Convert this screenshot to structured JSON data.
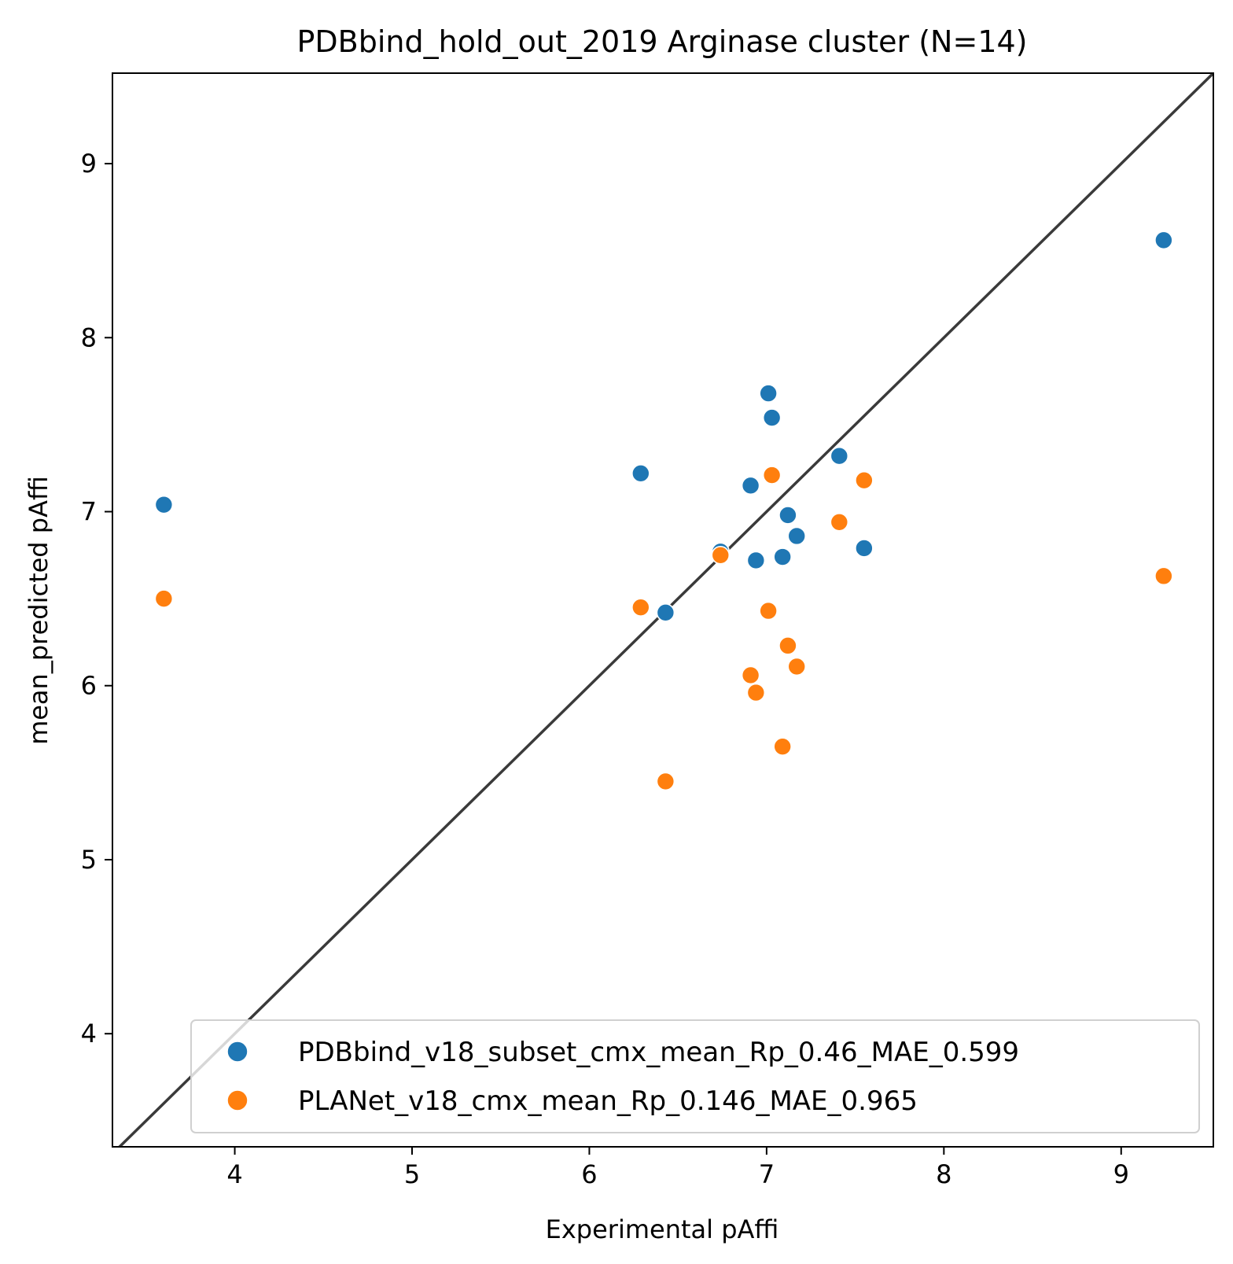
{
  "chart_data": {
    "type": "scatter",
    "title": "PDBbind_hold_out_2019 Arginase cluster (N=14)",
    "xlabel": "Experimental pAffi",
    "ylabel": "mean_predicted pAffi",
    "xlim": [
      3.31,
      9.52
    ],
    "ylim": [
      3.35,
      9.52
    ],
    "xticks": [
      4,
      5,
      6,
      7,
      8,
      9
    ],
    "yticks": [
      4,
      5,
      6,
      7,
      8,
      9
    ],
    "grid": false,
    "legend_position": "lower-right",
    "reference_line": "y = x",
    "series": [
      {
        "name": "PDBbind_v18_subset_cmx_mean_Rp_0.46_MAE_0.599",
        "color": "#1f77b4",
        "points": [
          {
            "x": 3.6,
            "y": 7.04
          },
          {
            "x": 6.29,
            "y": 7.22
          },
          {
            "x": 6.43,
            "y": 6.42
          },
          {
            "x": 6.74,
            "y": 6.77
          },
          {
            "x": 6.91,
            "y": 7.15
          },
          {
            "x": 6.94,
            "y": 6.72
          },
          {
            "x": 7.01,
            "y": 7.68
          },
          {
            "x": 7.03,
            "y": 7.54
          },
          {
            "x": 7.09,
            "y": 6.74
          },
          {
            "x": 7.12,
            "y": 6.98
          },
          {
            "x": 7.17,
            "y": 6.86
          },
          {
            "x": 7.41,
            "y": 7.32
          },
          {
            "x": 7.55,
            "y": 6.79
          },
          {
            "x": 9.24,
            "y": 8.56
          }
        ]
      },
      {
        "name": "PLANet_v18_cmx_mean_Rp_0.146_MAE_0.965",
        "color": "#ff7f0e",
        "points": [
          {
            "x": 3.6,
            "y": 6.5
          },
          {
            "x": 6.29,
            "y": 6.45
          },
          {
            "x": 6.43,
            "y": 5.45
          },
          {
            "x": 6.74,
            "y": 6.75
          },
          {
            "x": 6.91,
            "y": 6.06
          },
          {
            "x": 6.94,
            "y": 5.96
          },
          {
            "x": 7.01,
            "y": 6.43
          },
          {
            "x": 7.03,
            "y": 7.21
          },
          {
            "x": 7.09,
            "y": 5.65
          },
          {
            "x": 7.12,
            "y": 6.23
          },
          {
            "x": 7.17,
            "y": 6.11
          },
          {
            "x": 7.41,
            "y": 6.94
          },
          {
            "x": 7.55,
            "y": 7.18
          },
          {
            "x": 9.24,
            "y": 6.63
          }
        ]
      }
    ]
  }
}
